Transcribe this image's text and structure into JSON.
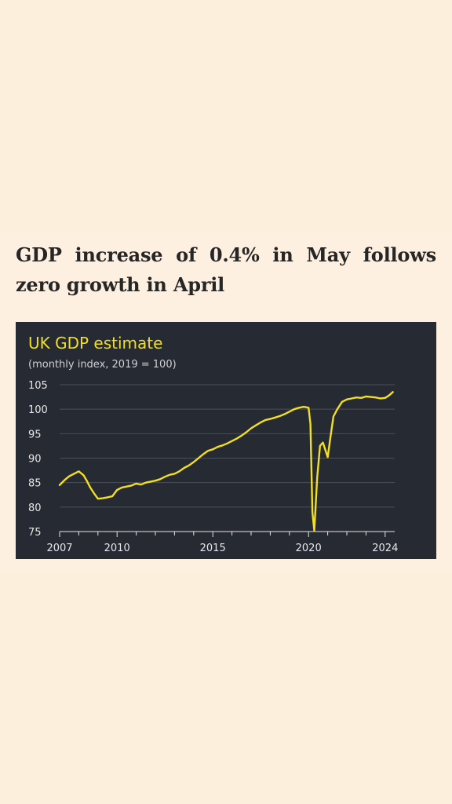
{
  "headline": "GDP increase of 0.4% in May follows zero growth in April",
  "colors": {
    "page_background": "#fcefdc",
    "chart_background": "#262a33",
    "line": "#f2df1f",
    "grid": "#4a4f5a",
    "text": "#262626"
  },
  "chart_data": {
    "type": "line",
    "title": "UK GDP estimate",
    "subtitle": "(monthly index, 2019 = 100)",
    "xlabel": "",
    "ylabel": "",
    "xlim": [
      2007,
      2024.5
    ],
    "ylim": [
      75,
      105
    ],
    "x_ticks": [
      2007,
      2010,
      2015,
      2020,
      2024
    ],
    "y_ticks": [
      75,
      80,
      85,
      90,
      95,
      100,
      105
    ],
    "grid": true,
    "legend": "none",
    "series": [
      {
        "x": [
          2007.0,
          2007.25,
          2007.5,
          2007.75,
          2008.0,
          2008.25,
          2008.4,
          2008.6,
          2008.8,
          2009.0,
          2009.25,
          2009.5,
          2009.75,
          2010.0,
          2010.25,
          2010.5,
          2010.75,
          2011.0,
          2011.25,
          2011.5,
          2011.75,
          2012.0,
          2012.25,
          2012.5,
          2012.75,
          2013.0,
          2013.25,
          2013.5,
          2013.75,
          2014.0,
          2014.25,
          2014.5,
          2014.75,
          2015.0,
          2015.25,
          2015.5,
          2015.75,
          2016.0,
          2016.25,
          2016.5,
          2016.75,
          2017.0,
          2017.25,
          2017.5,
          2017.75,
          2018.0,
          2018.25,
          2018.5,
          2018.75,
          2019.0,
          2019.25,
          2019.5,
          2019.75,
          2020.0,
          2020.1,
          2020.2,
          2020.3,
          2020.45,
          2020.6,
          2020.75,
          2020.85,
          2021.0,
          2021.15,
          2021.3,
          2021.5,
          2021.75,
          2022.0,
          2022.25,
          2022.5,
          2022.75,
          2023.0,
          2023.25,
          2023.5,
          2023.75,
          2024.0,
          2024.2,
          2024.4
        ],
        "y": [
          84.5,
          85.5,
          86.3,
          86.8,
          87.3,
          86.5,
          85.5,
          84.0,
          82.8,
          81.7,
          81.8,
          82.0,
          82.2,
          83.5,
          84.0,
          84.2,
          84.4,
          84.8,
          84.6,
          85.0,
          85.2,
          85.4,
          85.7,
          86.2,
          86.6,
          86.8,
          87.3,
          88.0,
          88.5,
          89.2,
          90.0,
          90.8,
          91.5,
          91.8,
          92.3,
          92.6,
          93.0,
          93.5,
          94.0,
          94.6,
          95.3,
          96.1,
          96.7,
          97.3,
          97.8,
          98.0,
          98.3,
          98.6,
          99.0,
          99.5,
          100.0,
          100.3,
          100.5,
          100.3,
          97.0,
          79.0,
          75.2,
          86.0,
          92.5,
          93.2,
          92.0,
          90.2,
          94.5,
          98.5,
          100.0,
          101.5,
          102.0,
          102.2,
          102.4,
          102.3,
          102.6,
          102.5,
          102.4,
          102.2,
          102.3,
          102.8,
          103.5
        ]
      }
    ]
  }
}
